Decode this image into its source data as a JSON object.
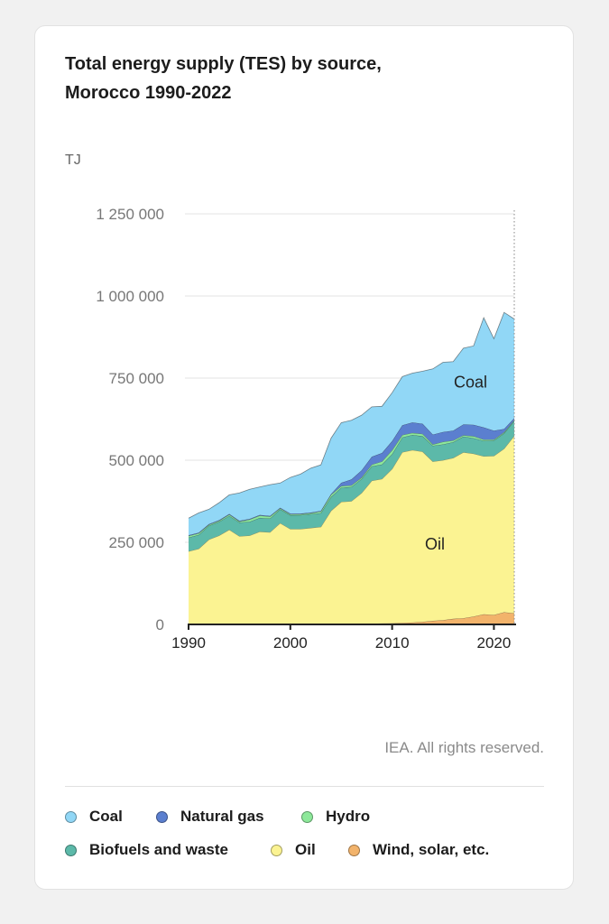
{
  "chart_data": {
    "type": "area",
    "title": "Total energy supply (TES) by source, Morocco 1990-2022",
    "unit": "TJ",
    "ylim": [
      0,
      1250000
    ],
    "y_ticks": [
      0,
      250000,
      500000,
      750000,
      1000000,
      1250000
    ],
    "y_tick_labels": [
      "0",
      "250 000",
      "500 000",
      "750 000",
      "1 000 000",
      "1 250 000"
    ],
    "x_ticks": [
      1990,
      2000,
      2010,
      2020
    ],
    "x_tick_labels": [
      "1990",
      "2000",
      "2010",
      "2020"
    ],
    "x": [
      1990,
      1991,
      1992,
      1993,
      1994,
      1995,
      1996,
      1997,
      1998,
      1999,
      2000,
      2001,
      2002,
      2003,
      2004,
      2005,
      2006,
      2007,
      2008,
      2009,
      2010,
      2011,
      2012,
      2013,
      2014,
      2015,
      2016,
      2017,
      2018,
      2019,
      2020,
      2021,
      2022
    ],
    "series": [
      {
        "name": "Wind, solar, etc.",
        "color": "#f2b36b",
        "values": [
          500,
          500,
          500,
          500,
          500,
          500,
          500,
          500,
          500,
          500,
          600,
          700,
          800,
          900,
          1000,
          1200,
          1500,
          2000,
          2500,
          3000,
          3500,
          4500,
          6000,
          8000,
          11000,
          13000,
          17000,
          19000,
          24000,
          31000,
          29000,
          37000,
          34000
        ]
      },
      {
        "name": "Oil",
        "color": "#fbf392",
        "values": [
          222000,
          230000,
          258000,
          270000,
          288000,
          268000,
          270000,
          282000,
          280000,
          308000,
          290000,
          290000,
          293000,
          296000,
          345000,
          372000,
          374000,
          398000,
          435000,
          440000,
          470000,
          520000,
          525000,
          518000,
          485000,
          487000,
          490000,
          505000,
          496000,
          481000,
          484000,
          498000,
          540000
        ]
      },
      {
        "name": "Biofuels and waste",
        "color": "#5cb9a9",
        "values": [
          42000,
          42000,
          42000,
          42000,
          42000,
          42000,
          42000,
          42000,
          42000,
          42000,
          42000,
          42000,
          42000,
          42000,
          42000,
          43000,
          43000,
          43000,
          44000,
          44000,
          45000,
          45000,
          46000,
          47000,
          48000,
          48000,
          48000,
          48000,
          47000,
          47000,
          47000,
          47000,
          46000
        ]
      },
      {
        "name": "Hydro",
        "color": "#8de89a",
        "values": [
          5000,
          5000,
          3000,
          3000,
          4000,
          3000,
          7000,
          7000,
          6000,
          3000,
          3000,
          3000,
          3000,
          5000,
          7000,
          5000,
          5000,
          4000,
          5000,
          9000,
          12000,
          7000,
          6000,
          7000,
          4000,
          8000,
          5000,
          4000,
          6000,
          4000,
          3000,
          3000,
          2000
        ]
      },
      {
        "name": "Natural gas",
        "color": "#5b7fcf",
        "values": [
          2000,
          2000,
          2000,
          2000,
          2000,
          2000,
          2000,
          2000,
          2000,
          2000,
          2000,
          2000,
          2000,
          2000,
          2000,
          10000,
          18000,
          22000,
          24000,
          26000,
          28000,
          30000,
          32000,
          31000,
          30000,
          30000,
          30000,
          33000,
          35000,
          37000,
          27000,
          10000,
          6000
        ]
      },
      {
        "name": "Coal",
        "color": "#91d7f6",
        "values": [
          52000,
          60000,
          45000,
          53000,
          58000,
          85000,
          90000,
          85000,
          95000,
          75000,
          110000,
          120000,
          135000,
          140000,
          170000,
          183000,
          180000,
          168000,
          152000,
          142000,
          147000,
          148000,
          150000,
          160000,
          200000,
          212000,
          210000,
          232000,
          240000,
          334000,
          280000,
          355000,
          302000
        ]
      }
    ],
    "annotations": [
      {
        "text": "Coal",
        "x": 2017.7,
        "y": 737000
      },
      {
        "text": "Oil",
        "x": 2014.2,
        "y": 245000
      }
    ],
    "grid": true,
    "legend": "bottom"
  },
  "header": {
    "title_line1": "Total energy supply (TES) by source,",
    "title_line2": "Morocco 1990-2022",
    "unit": "TJ"
  },
  "footer": {
    "credit": "IEA. All rights reserved."
  },
  "legend_items": [
    {
      "label": "Coal",
      "color": "#91d7f6"
    },
    {
      "label": "Natural gas",
      "color": "#5b7fcf"
    },
    {
      "label": "Hydro",
      "color": "#8de89a"
    },
    {
      "label": "Biofuels and waste",
      "color": "#5cb9a9"
    },
    {
      "label": "Oil",
      "color": "#fbf392"
    },
    {
      "label": "Wind, solar, etc.",
      "color": "#f2b36b"
    }
  ]
}
